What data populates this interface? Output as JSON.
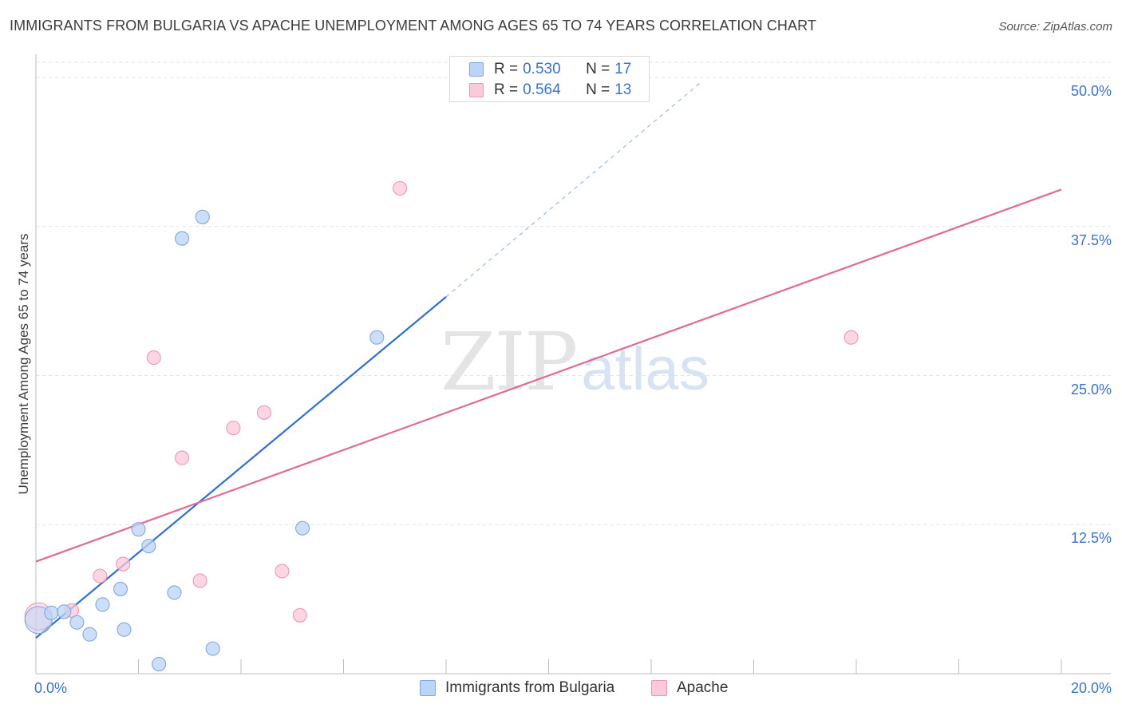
{
  "header": {
    "title": "IMMIGRANTS FROM BULGARIA VS APACHE UNEMPLOYMENT AMONG AGES 65 TO 74 YEARS CORRELATION CHART",
    "source": "Source: ZipAtlas.com"
  },
  "watermark": {
    "zip": "ZIP",
    "atlas": "atlas"
  },
  "legend": {
    "r_label": "R =",
    "n_label": "N =",
    "rows": [
      {
        "r": "0.530",
        "n": "17",
        "color": "#5b8fd6"
      },
      {
        "r": "0.564",
        "n": "13",
        "color": "#e97fa2"
      }
    ]
  },
  "colors": {
    "blue_fill": "#bcd4f6",
    "blue_stroke": "#7fa8e0",
    "blue_line": "#2f6fd0",
    "pink_fill": "#fbcad9",
    "pink_stroke": "#ec98b3",
    "pink_line": "#e06a92",
    "axis_text": "#3a72c8"
  },
  "chart_data": {
    "type": "scatter",
    "title": "IMMIGRANTS FROM BULGARIA VS APACHE UNEMPLOYMENT AMONG AGES 65 TO 74 YEARS CORRELATION CHART",
    "xlabel": "",
    "ylabel": "Unemployment Among Ages 65 to 74 years",
    "xlim": [
      0,
      20
    ],
    "ylim": [
      0,
      50
    ],
    "x_tick_labels": [
      "0.0%",
      "20.0%"
    ],
    "y_ticks": [
      12.5,
      25.0,
      37.5,
      50.0
    ],
    "y_tick_labels": [
      "12.5%",
      "25.0%",
      "37.5%",
      "50.0%"
    ],
    "grid": true,
    "legend_position": "top-center",
    "series": [
      {
        "name": "Immigrants from Bulgaria",
        "color": "#5b8fd6",
        "points": [
          {
            "x": 0.05,
            "y": 4.5,
            "big": true
          },
          {
            "x": 0.3,
            "y": 5.1
          },
          {
            "x": 0.55,
            "y": 5.2
          },
          {
            "x": 0.8,
            "y": 4.3
          },
          {
            "x": 1.05,
            "y": 3.3
          },
          {
            "x": 1.3,
            "y": 5.8
          },
          {
            "x": 1.65,
            "y": 7.1
          },
          {
            "x": 1.72,
            "y": 3.7
          },
          {
            "x": 2.0,
            "y": 12.1
          },
          {
            "x": 2.2,
            "y": 10.7
          },
          {
            "x": 2.4,
            "y": 0.8
          },
          {
            "x": 2.7,
            "y": 6.8
          },
          {
            "x": 2.85,
            "y": 36.5
          },
          {
            "x": 3.25,
            "y": 38.3
          },
          {
            "x": 3.45,
            "y": 2.1
          },
          {
            "x": 5.2,
            "y": 12.2
          },
          {
            "x": 6.65,
            "y": 28.2
          }
        ],
        "trendline": {
          "x0": 0.0,
          "y0": 3.0,
          "x1": 8.0,
          "y1": 31.6,
          "dashed_to_x": 13.0,
          "dashed_to_y": 49.7
        }
      },
      {
        "name": "Apache",
        "color": "#e97fa2",
        "points": [
          {
            "x": 0.05,
            "y": 4.8,
            "big": true
          },
          {
            "x": 0.7,
            "y": 5.3
          },
          {
            "x": 1.25,
            "y": 8.2
          },
          {
            "x": 1.7,
            "y": 9.2
          },
          {
            "x": 2.3,
            "y": 26.5
          },
          {
            "x": 2.85,
            "y": 18.1
          },
          {
            "x": 3.2,
            "y": 7.8
          },
          {
            "x": 3.85,
            "y": 20.6
          },
          {
            "x": 4.45,
            "y": 21.9
          },
          {
            "x": 4.8,
            "y": 8.6
          },
          {
            "x": 5.15,
            "y": 4.9
          },
          {
            "x": 7.1,
            "y": 40.7
          },
          {
            "x": 15.9,
            "y": 28.2
          }
        ],
        "trendline": {
          "x0": 0.0,
          "y0": 9.4,
          "x1": 20.0,
          "y1": 40.6
        }
      }
    ]
  },
  "bottom_legend": {
    "items": [
      {
        "label": "Immigrants from Bulgaria"
      },
      {
        "label": "Apache"
      }
    ]
  }
}
